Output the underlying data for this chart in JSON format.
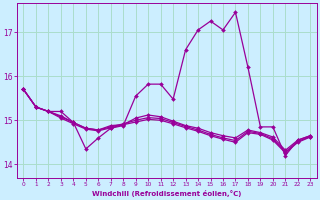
{
  "xlabel": "Windchill (Refroidissement éolien,°C)",
  "background_color": "#cceeff",
  "grid_color": "#aaddcc",
  "line_color": "#990099",
  "spine_color": "#990099",
  "xlim": [
    -0.5,
    23.5
  ],
  "ylim": [
    13.7,
    17.65
  ],
  "yticks": [
    14,
    15,
    16,
    17
  ],
  "xticks": [
    0,
    1,
    2,
    3,
    4,
    5,
    6,
    7,
    8,
    9,
    10,
    11,
    12,
    13,
    14,
    15,
    16,
    17,
    18,
    19,
    20,
    21,
    22,
    23
  ],
  "series": [
    [
      15.7,
      15.3,
      15.2,
      15.2,
      14.95,
      14.35,
      14.6,
      14.82,
      14.88,
      15.55,
      15.82,
      15.82,
      15.48,
      16.6,
      17.05,
      17.25,
      17.05,
      17.45,
      16.2,
      14.85,
      14.85,
      14.2,
      14.55,
      14.65
    ],
    [
      15.7,
      15.3,
      15.2,
      15.1,
      14.95,
      14.82,
      14.78,
      14.88,
      14.9,
      15.05,
      15.12,
      15.08,
      14.98,
      14.88,
      14.82,
      14.72,
      14.65,
      14.6,
      14.78,
      14.72,
      14.62,
      14.32,
      14.55,
      14.65
    ],
    [
      15.7,
      15.3,
      15.2,
      15.08,
      14.95,
      14.82,
      14.78,
      14.85,
      14.92,
      15.0,
      15.06,
      15.04,
      14.95,
      14.86,
      14.78,
      14.68,
      14.6,
      14.54,
      14.75,
      14.7,
      14.58,
      14.28,
      14.52,
      14.63
    ],
    [
      15.7,
      15.3,
      15.2,
      15.05,
      14.92,
      14.8,
      14.76,
      14.83,
      14.9,
      14.96,
      15.02,
      15.0,
      14.92,
      14.83,
      14.75,
      14.65,
      14.57,
      14.5,
      14.72,
      14.68,
      14.55,
      14.26,
      14.5,
      14.62
    ]
  ]
}
